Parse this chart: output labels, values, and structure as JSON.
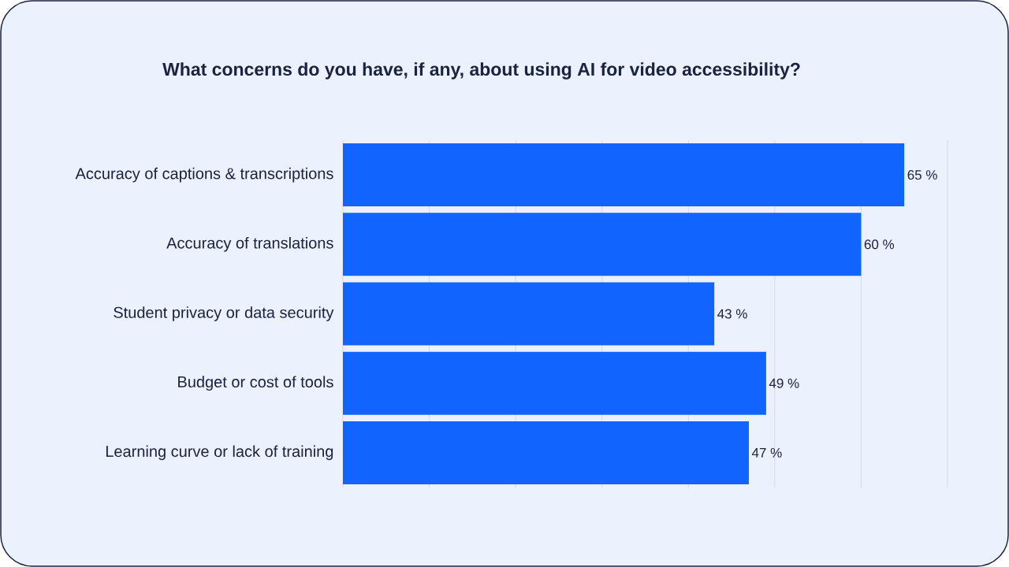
{
  "chart_data": {
    "type": "bar",
    "orientation": "horizontal",
    "title": "What concerns do you have, if any, about using AI for video accessibility?",
    "categories": [
      "Accuracy of captions & transcriptions",
      "Accuracy of translations",
      "Student privacy or data security",
      "Budget or cost of tools",
      "Learning curve or lack of training"
    ],
    "values": [
      65,
      60,
      43,
      49,
      47
    ],
    "value_labels": [
      "65 %",
      "60 %",
      "43 %",
      "49 %",
      "47 %"
    ],
    "color": "#1264ff",
    "xlim": [
      0,
      70
    ],
    "xticks": [
      {
        "value": 0,
        "label": null
      },
      {
        "value": 10,
        "label": null
      },
      {
        "value": 20,
        "label": null
      },
      {
        "value": 30,
        "label": null
      },
      {
        "value": 40,
        "label": null
      },
      {
        "value": 50,
        "label": null
      },
      {
        "value": 60,
        "label": null
      },
      {
        "value": 70,
        "label": null
      }
    ],
    "grid": "x",
    "tick_labels": "y"
  }
}
